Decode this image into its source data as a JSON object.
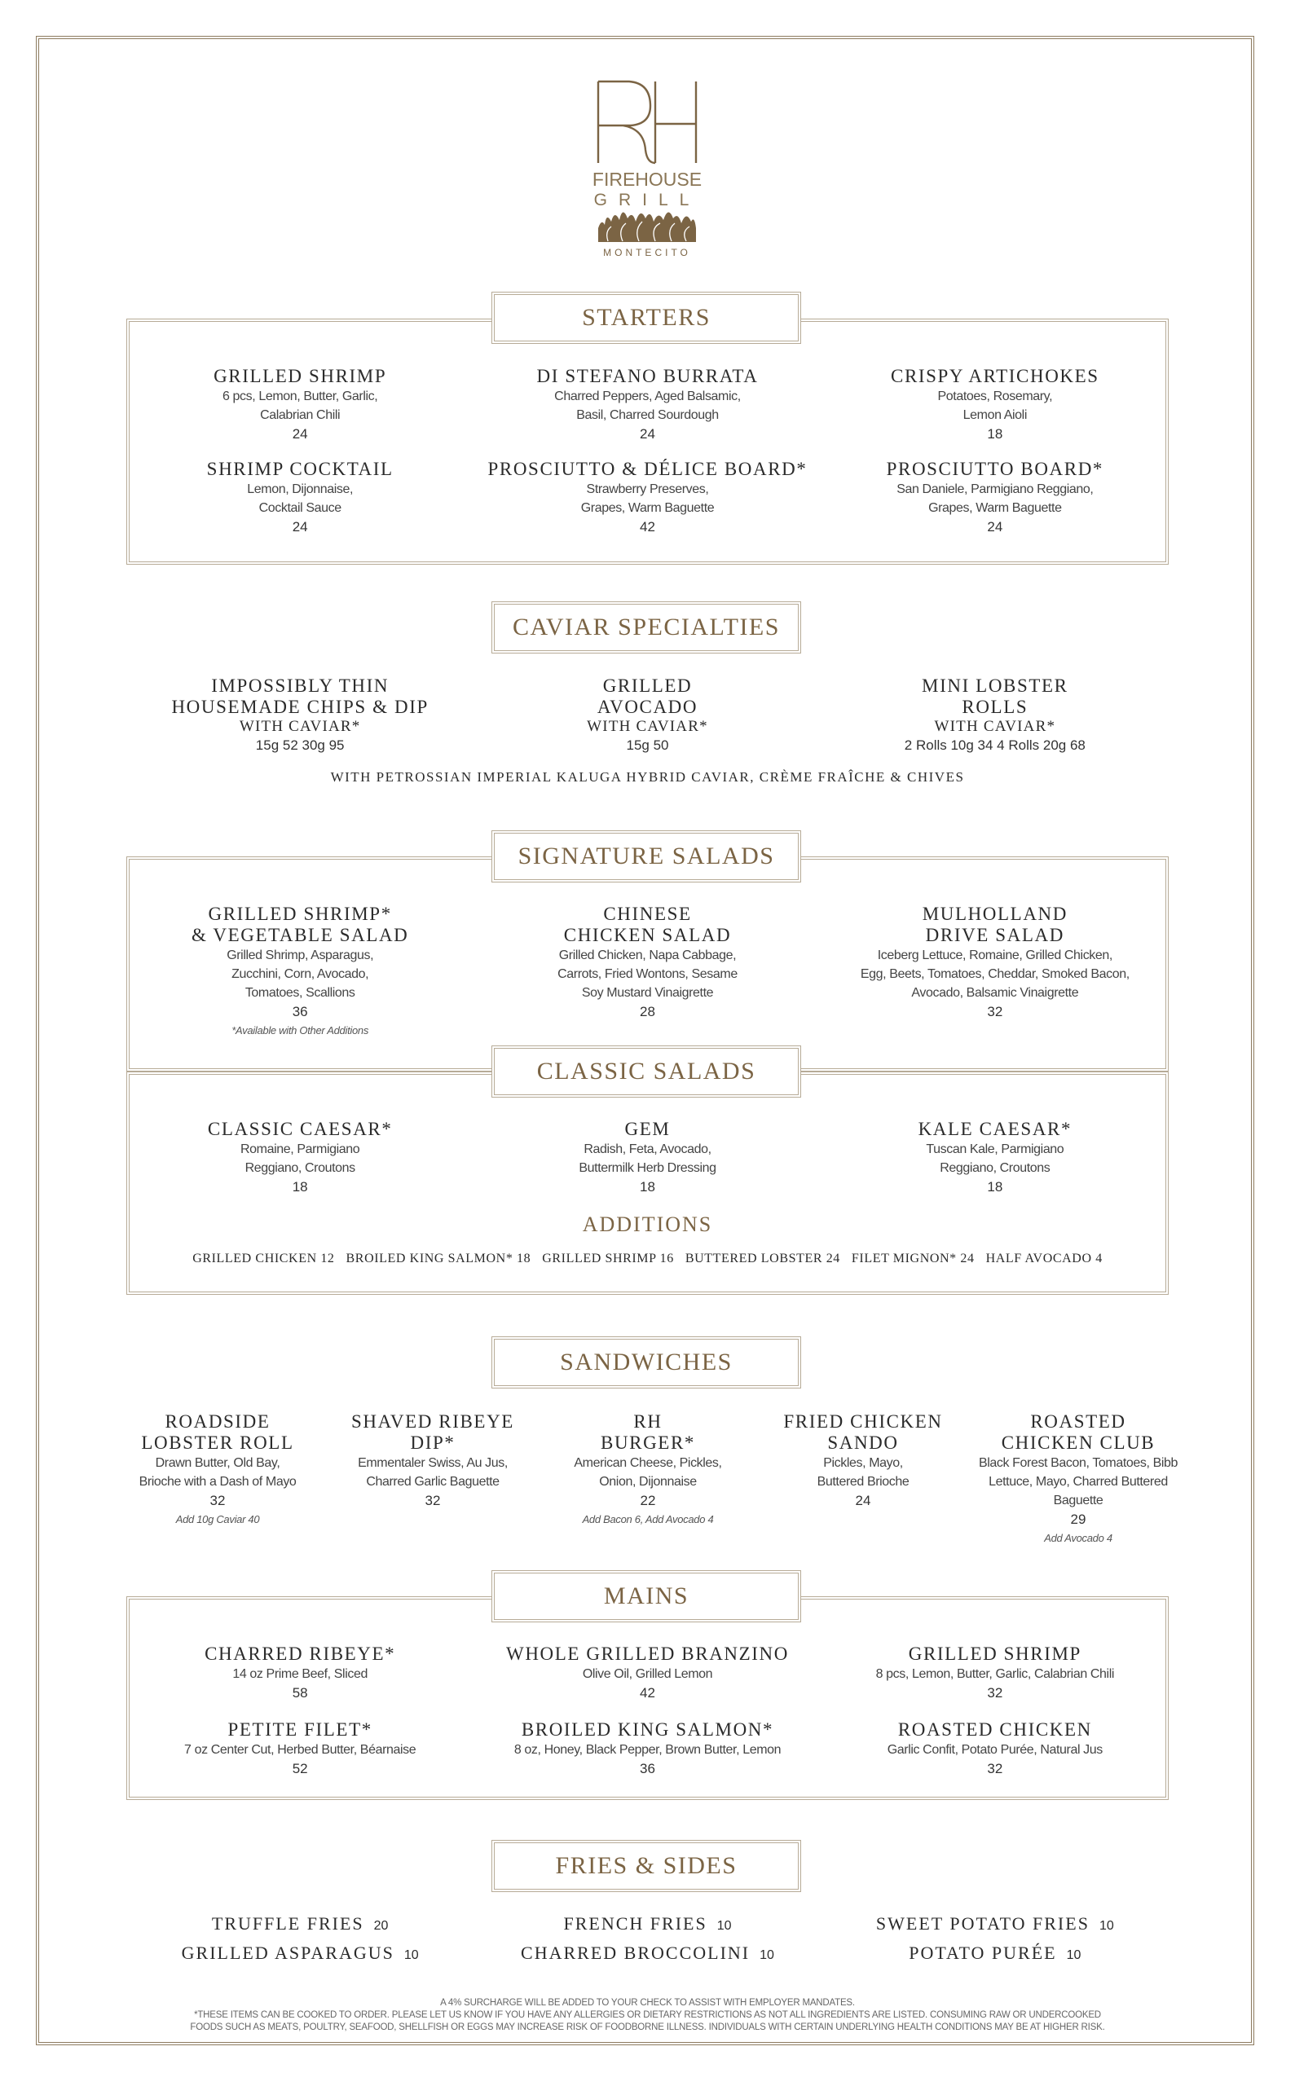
{
  "logo": {
    "mark": "RH",
    "line1": "FIREHOUSE",
    "line2": "GRILL",
    "location": "MONTECITO"
  },
  "colors": {
    "accent": "#7b6444",
    "border": "#b7ab97",
    "text": "#2b2b2b"
  },
  "starters": {
    "title": "STARTERS",
    "items": [
      {
        "name": "GRILLED SHRIMP",
        "desc": [
          "6 pcs, Lemon, Butter, Garlic,",
          "Calabrian Chili"
        ],
        "price": "24"
      },
      {
        "name": "DI STEFANO BURRATA",
        "desc": [
          "Charred Peppers, Aged Balsamic,",
          "Basil, Charred Sourdough"
        ],
        "price": "24"
      },
      {
        "name": "CRISPY ARTICHOKES",
        "desc": [
          "Potatoes, Rosemary,",
          "Lemon Aioli"
        ],
        "price": "18"
      },
      {
        "name": "SHRIMP COCKTAIL",
        "desc": [
          "Lemon, Dijonnaise,",
          "Cocktail Sauce"
        ],
        "price": "24"
      },
      {
        "name": "PROSCIUTTO & DÉLICE BOARD*",
        "desc": [
          "Strawberry Preserves,",
          "Grapes, Warm Baguette"
        ],
        "price": "42"
      },
      {
        "name": "PROSCIUTTO BOARD*",
        "desc": [
          "San Daniele, Parmigiano Reggiano,",
          "Grapes, Warm Baguette"
        ],
        "price": "24"
      }
    ]
  },
  "caviar": {
    "title": "CAVIAR SPECIALTIES",
    "items": [
      {
        "name": "IMPOSSIBLY THIN\nHOUSEMADE CHIPS & DIP",
        "sub": "WITH CAVIAR*",
        "price": "15g 52   30g 95"
      },
      {
        "name": "GRILLED\nAVOCADO",
        "sub": "WITH CAVIAR*",
        "price": "15g 50"
      },
      {
        "name": "MINI LOBSTER\nROLLS",
        "sub": "WITH CAVIAR*",
        "price": "2 Rolls 10g 34   4 Rolls 20g 68"
      }
    ],
    "note": "WITH PETROSSIAN IMPERIAL KALUGA HYBRID CAVIAR, CRÈME FRAÎCHE & CHIVES"
  },
  "signature_salads": {
    "title": "SIGNATURE SALADS",
    "items": [
      {
        "name": "GRILLED SHRIMP*\n& VEGETABLE SALAD",
        "desc": [
          "Grilled Shrimp, Asparagus,",
          "Zucchini, Corn, Avocado,",
          "Tomatoes, Scallions"
        ],
        "price": "36",
        "note": "*Available with Other Additions"
      },
      {
        "name": "CHINESE\nCHICKEN SALAD",
        "desc": [
          "Grilled Chicken, Napa Cabbage,",
          "Carrots, Fried Wontons, Sesame",
          "Soy Mustard Vinaigrette"
        ],
        "price": "28"
      },
      {
        "name": "MULHOLLAND\nDRIVE SALAD",
        "desc": [
          "Iceberg Lettuce, Romaine, Grilled Chicken,",
          "Egg, Beets, Tomatoes, Cheddar, Smoked Bacon,",
          "Avocado, Balsamic Vinaigrette"
        ],
        "price": "32"
      }
    ]
  },
  "classic_salads": {
    "title": "CLASSIC SALADS",
    "items": [
      {
        "name": "CLASSIC CAESAR*",
        "desc": [
          "Romaine, Parmigiano",
          "Reggiano, Croutons"
        ],
        "price": "18"
      },
      {
        "name": "GEM",
        "desc": [
          "Radish, Feta, Avocado,",
          "Buttermilk Herb Dressing"
        ],
        "price": "18"
      },
      {
        "name": "KALE CAESAR*",
        "desc": [
          "Tuscan Kale, Parmigiano",
          "Reggiano, Croutons"
        ],
        "price": "18"
      }
    ],
    "additions_title": "ADDITIONS",
    "additions": [
      "GRILLED CHICKEN 12",
      "BROILED KING SALMON* 18",
      "GRILLED SHRIMP 16",
      "BUTTERED LOBSTER 24",
      "FILET MIGNON* 24",
      "HALF AVOCADO 4"
    ]
  },
  "sandwiches": {
    "title": "SANDWICHES",
    "items": [
      {
        "name": "ROADSIDE\nLOBSTER ROLL",
        "desc": [
          "Drawn Butter, Old Bay,",
          "Brioche with a Dash of Mayo"
        ],
        "price": "32",
        "note": "Add 10g Caviar 40"
      },
      {
        "name": "SHAVED RIBEYE\nDIP*",
        "desc": [
          "Emmentaler Swiss, Au Jus,",
          "Charred Garlic Baguette"
        ],
        "price": "32"
      },
      {
        "name": "RH\nBURGER*",
        "desc": [
          "American Cheese, Pickles,",
          "Onion, Dijonnaise"
        ],
        "price": "22",
        "note": "Add Bacon 6, Add Avocado 4"
      },
      {
        "name": "FRIED CHICKEN\nSANDO",
        "desc": [
          "Pickles, Mayo,",
          "Buttered Brioche"
        ],
        "price": "24"
      },
      {
        "name": "ROASTED\nCHICKEN CLUB",
        "desc": [
          "Black Forest Bacon, Tomatoes, Bibb",
          "Lettuce, Mayo, Charred Buttered Baguette"
        ],
        "price": "29",
        "note": "Add Avocado 4"
      }
    ]
  },
  "mains": {
    "title": "MAINS",
    "items": [
      {
        "name": "CHARRED RIBEYE*",
        "desc": [
          "14 oz Prime Beef, Sliced"
        ],
        "price": "58"
      },
      {
        "name": "WHOLE GRILLED BRANZINO",
        "desc": [
          "Olive Oil, Grilled Lemon"
        ],
        "price": "42"
      },
      {
        "name": "GRILLED SHRIMP",
        "desc": [
          "8 pcs, Lemon, Butter, Garlic, Calabrian Chili"
        ],
        "price": "32"
      },
      {
        "name": "PETITE FILET*",
        "desc": [
          "7 oz Center Cut, Herbed Butter, Béarnaise"
        ],
        "price": "52"
      },
      {
        "name": "BROILED KING SALMON*",
        "desc": [
          "8 oz, Honey, Black Pepper, Brown Butter, Lemon"
        ],
        "price": "36"
      },
      {
        "name": "ROASTED CHICKEN",
        "desc": [
          "Garlic Confit, Potato Purée, Natural Jus"
        ],
        "price": "32"
      }
    ]
  },
  "fries_sides": {
    "title": "FRIES & SIDES",
    "items": [
      {
        "name": "TRUFFLE FRIES",
        "price": "20"
      },
      {
        "name": "FRENCH FRIES",
        "price": "10"
      },
      {
        "name": "SWEET POTATO FRIES",
        "price": "10"
      },
      {
        "name": "GRILLED ASPARAGUS",
        "price": "10"
      },
      {
        "name": "CHARRED BROCCOLINI",
        "price": "10"
      },
      {
        "name": "POTATO PURÉE",
        "price": "10"
      }
    ]
  },
  "footer": {
    "surcharge": "A 4% SURCHARGE WILL BE ADDED TO YOUR CHECK TO ASSIST WITH EMPLOYER MANDATES.",
    "disclaimer_1": "*THESE ITEMS CAN BE COOKED TO ORDER. PLEASE LET US KNOW IF YOU HAVE ANY ALLERGIES OR DIETARY RESTRICTIONS AS NOT ALL INGREDIENTS ARE LISTED. CONSUMING RAW OR UNDERCOOKED",
    "disclaimer_2": "FOODS SUCH AS MEATS, POULTRY, SEAFOOD, SHELLFISH OR EGGS MAY INCREASE RISK OF FOODBORNE ILLNESS. INDIVIDUALS WITH CERTAIN UNDERLYING HEALTH CONDITIONS MAY BE AT HIGHER RISK."
  }
}
